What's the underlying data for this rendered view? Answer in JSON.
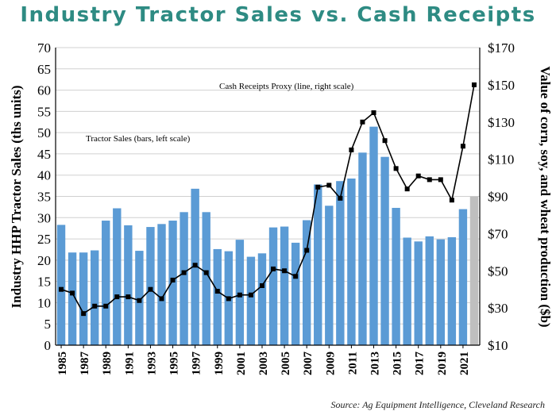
{
  "title": "Industry Tractor Sales vs. Cash Receipts",
  "source": "Source: Ag Equipment Intelligence, Cleveland Research",
  "chart_data": {
    "type": "bar",
    "x": [
      1985,
      1986,
      1987,
      1988,
      1989,
      1990,
      1991,
      1992,
      1993,
      1994,
      1995,
      1996,
      1997,
      1998,
      1999,
      2000,
      2001,
      2002,
      2003,
      2004,
      2005,
      2006,
      2007,
      2008,
      2009,
      2010,
      2011,
      2012,
      2013,
      2014,
      2015,
      2016,
      2017,
      2018,
      2019,
      2020,
      2021,
      2022
    ],
    "x_tick_labels": [
      "1985",
      "1987",
      "1989",
      "1991",
      "1993",
      "1995",
      "1997",
      "1999",
      "2001",
      "2003",
      "2005",
      "2007",
      "2009",
      "2011",
      "2013",
      "2015",
      "2017",
      "2019",
      "2021"
    ],
    "ylabel": "Industry HHP Tractor Sales (ths units)",
    "y2label": "Value of corn, soy, and wheat production ($b)",
    "ylim": [
      0,
      70
    ],
    "yticks": [
      "0",
      "5",
      "10",
      "15",
      "20",
      "25",
      "30",
      "35",
      "40",
      "45",
      "50",
      "55",
      "60",
      "65",
      "70"
    ],
    "y2lim": [
      10,
      170
    ],
    "y2ticks": [
      "$10",
      "$30",
      "$50",
      "$70",
      "$90",
      "$110",
      "$130",
      "$150",
      "$170"
    ],
    "grid": "horizontal",
    "series": [
      {
        "name": "Tractor Sales (bars, left scale)",
        "type": "bar",
        "axis": "left",
        "color": "#5b9bd5",
        "highlight_color": "#bfbfbf",
        "highlight_index": 37,
        "values": [
          28.3,
          21.8,
          21.8,
          22.3,
          29.3,
          32.2,
          28.2,
          22.2,
          27.8,
          28.5,
          29.3,
          31.3,
          36.8,
          31.3,
          22.6,
          22.1,
          24.8,
          20.8,
          21.6,
          27.7,
          27.9,
          24.1,
          29.4,
          37.8,
          32.8,
          38.6,
          39.2,
          45.3,
          51.4,
          44.3,
          32.3,
          25.3,
          24.4,
          25.6,
          24.9,
          25.4,
          32.0,
          35.0
        ]
      },
      {
        "name": "Cash Receipts Proxy (line, right scale)",
        "type": "line",
        "axis": "right",
        "color": "#000000",
        "values": [
          40,
          38,
          27,
          31,
          31,
          36,
          36,
          34,
          40,
          35,
          45,
          49,
          53,
          49,
          39,
          35,
          37,
          37,
          42,
          51,
          50,
          47,
          61,
          95,
          96,
          89,
          115,
          130,
          135,
          120,
          105,
          94,
          101,
          99,
          99,
          88,
          117,
          150
        ]
      }
    ]
  }
}
